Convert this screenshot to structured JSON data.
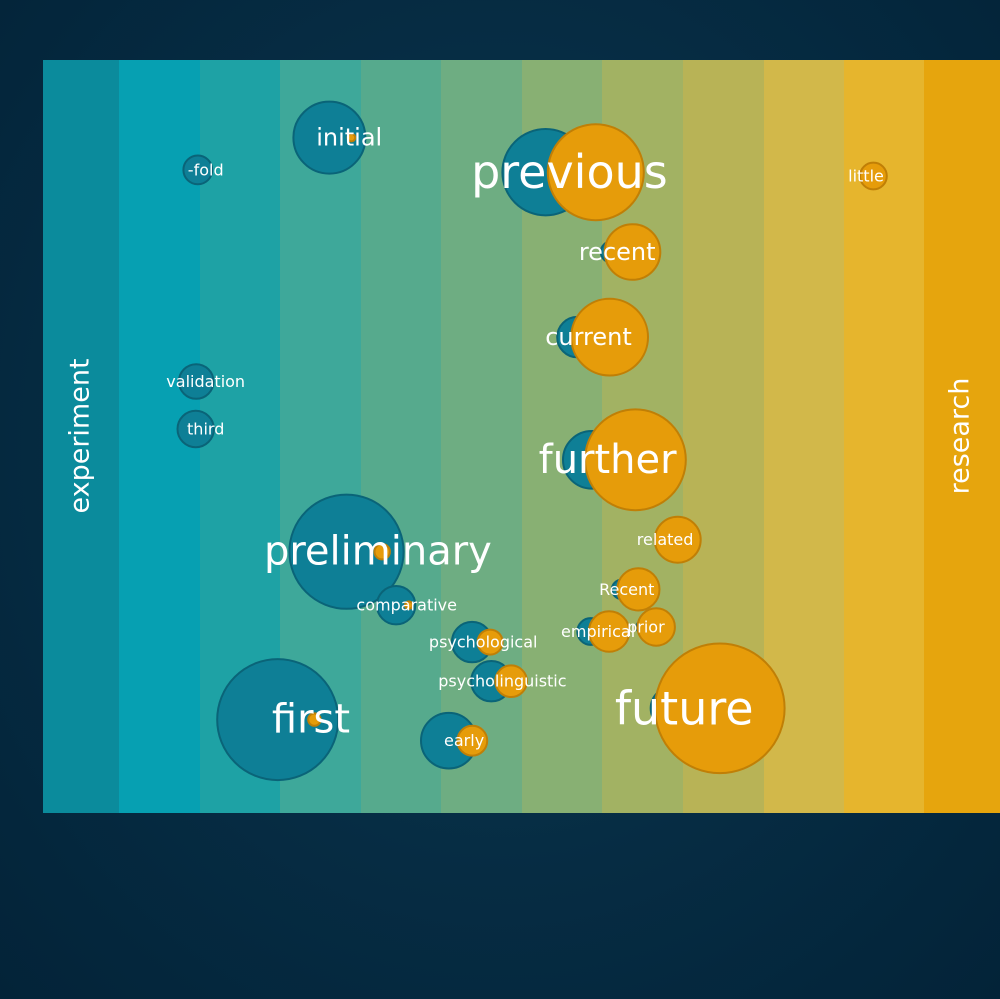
{
  "chart_data": {
    "type": "scatter",
    "left_label": "experiment",
    "right_label": "research",
    "colors": {
      "left": "#0e7f96",
      "right": "#e69c0a",
      "bands": [
        "#0b8b9c",
        "#06a0b2",
        "#1ea2a5",
        "#3ea89a",
        "#56aa8d",
        "#6ead82",
        "#88b073",
        "#a2b263",
        "#b8b356",
        "#d2b84a",
        "#e6b52d",
        "#e6a50d"
      ]
    },
    "words": [
      {
        "word": "initial",
        "pos": 0.32,
        "y": 0.103,
        "left": 0.75,
        "right": 0.08,
        "size": "md"
      },
      {
        "word": "-fold",
        "pos": 0.17,
        "y": 0.146,
        "left": 0.3,
        "right": 0.0,
        "size": "sm"
      },
      {
        "word": "previous",
        "pos": 0.55,
        "y": 0.149,
        "left": 0.9,
        "right": 1.0,
        "size": "xl"
      },
      {
        "word": "little",
        "pos": 0.86,
        "y": 0.154,
        "left": 0.0,
        "right": 0.28,
        "size": "sm"
      },
      {
        "word": "recent",
        "pos": 0.6,
        "y": 0.255,
        "left": 0.22,
        "right": 0.58,
        "size": "md"
      },
      {
        "word": "current",
        "pos": 0.57,
        "y": 0.368,
        "left": 0.42,
        "right": 0.8,
        "size": "md"
      },
      {
        "word": "validation",
        "pos": 0.17,
        "y": 0.427,
        "left": 0.36,
        "right": 0.0,
        "size": "sm"
      },
      {
        "word": "third",
        "pos": 0.17,
        "y": 0.49,
        "left": 0.38,
        "right": 0.0,
        "size": "sm"
      },
      {
        "word": "further",
        "pos": 0.59,
        "y": 0.531,
        "left": 0.6,
        "right": 1.05,
        "size": "lg"
      },
      {
        "word": "preliminary",
        "pos": 0.35,
        "y": 0.653,
        "left": 1.19,
        "right": 0.16,
        "size": "lg"
      },
      {
        "word": "related",
        "pos": 0.65,
        "y": 0.637,
        "left": 0.14,
        "right": 0.48,
        "size": "sm"
      },
      {
        "word": "Recent",
        "pos": 0.61,
        "y": 0.703,
        "left": 0.2,
        "right": 0.44,
        "size": "sm"
      },
      {
        "word": "comparative",
        "pos": 0.38,
        "y": 0.724,
        "left": 0.4,
        "right": 0.08,
        "size": "sm"
      },
      {
        "word": "prior",
        "pos": 0.63,
        "y": 0.753,
        "left": 0.13,
        "right": 0.39,
        "size": "sm"
      },
      {
        "word": "empirical",
        "pos": 0.58,
        "y": 0.759,
        "left": 0.28,
        "right": 0.42,
        "size": "sm"
      },
      {
        "word": "psychological",
        "pos": 0.46,
        "y": 0.773,
        "left": 0.42,
        "right": 0.26,
        "size": "sm"
      },
      {
        "word": "psycholinguistic",
        "pos": 0.48,
        "y": 0.825,
        "left": 0.42,
        "right": 0.33,
        "size": "sm"
      },
      {
        "word": "future",
        "pos": 0.67,
        "y": 0.861,
        "left": 0.45,
        "right": 1.35,
        "size": "xl"
      },
      {
        "word": "first",
        "pos": 0.28,
        "y": 0.876,
        "left": 1.26,
        "right": 0.13,
        "size": "lg"
      },
      {
        "word": "early",
        "pos": 0.44,
        "y": 0.904,
        "left": 0.58,
        "right": 0.31,
        "size": "sm"
      }
    ]
  }
}
